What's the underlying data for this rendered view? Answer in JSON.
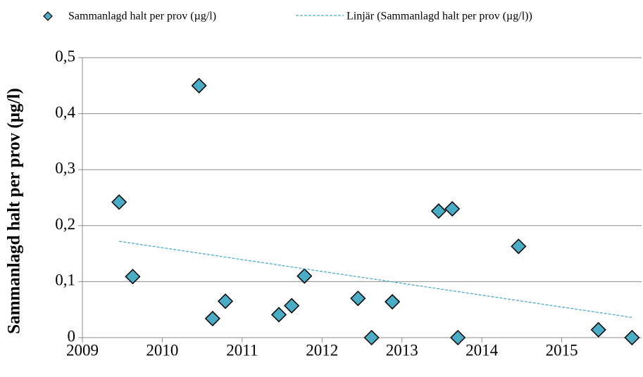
{
  "chart_data": {
    "type": "scatter",
    "y_label": "Sammanlagd halt per prov (µg/l)",
    "series": [
      {
        "name": "Sammanlagd halt per prov (µg/l)",
        "color": "#4bacc6",
        "x": [
          2009.46,
          2009.63,
          2010.46,
          2010.63,
          2010.79,
          2011.46,
          2011.62,
          2011.78,
          2012.45,
          2012.62,
          2012.88,
          2013.46,
          2013.63,
          2013.7,
          2014.46,
          2015.46,
          2015.88
        ],
        "values": [
          0.242,
          0.109,
          0.45,
          0.034,
          0.065,
          0.041,
          0.057,
          0.11,
          0.07,
          0,
          0.064,
          0.226,
          0.23,
          0,
          0.163,
          0.014,
          0
        ]
      },
      {
        "name": "Linjär (Sammanlagd halt per prov (µg/l))",
        "color": "#4bacc6",
        "line": "dashed",
        "x": [
          2009.46,
          2015.88
        ],
        "values": [
          0.172,
          0.036
        ]
      }
    ],
    "xlim": [
      2009,
      2016
    ],
    "xticks": [
      2009,
      2010,
      2011,
      2012,
      2013,
      2014,
      2015
    ],
    "ylim": [
      0,
      0.5
    ],
    "yticks": [
      0,
      {
        "value": 0.1,
        "label": "0,1"
      },
      {
        "value": 0.2,
        "label": "0,2"
      },
      {
        "value": 0.3,
        "label": "0,3"
      },
      {
        "value": 0.4,
        "label": "0,4"
      },
      {
        "value": 0.5,
        "label": "0,5"
      }
    ],
    "grid": true,
    "legend": "top"
  }
}
